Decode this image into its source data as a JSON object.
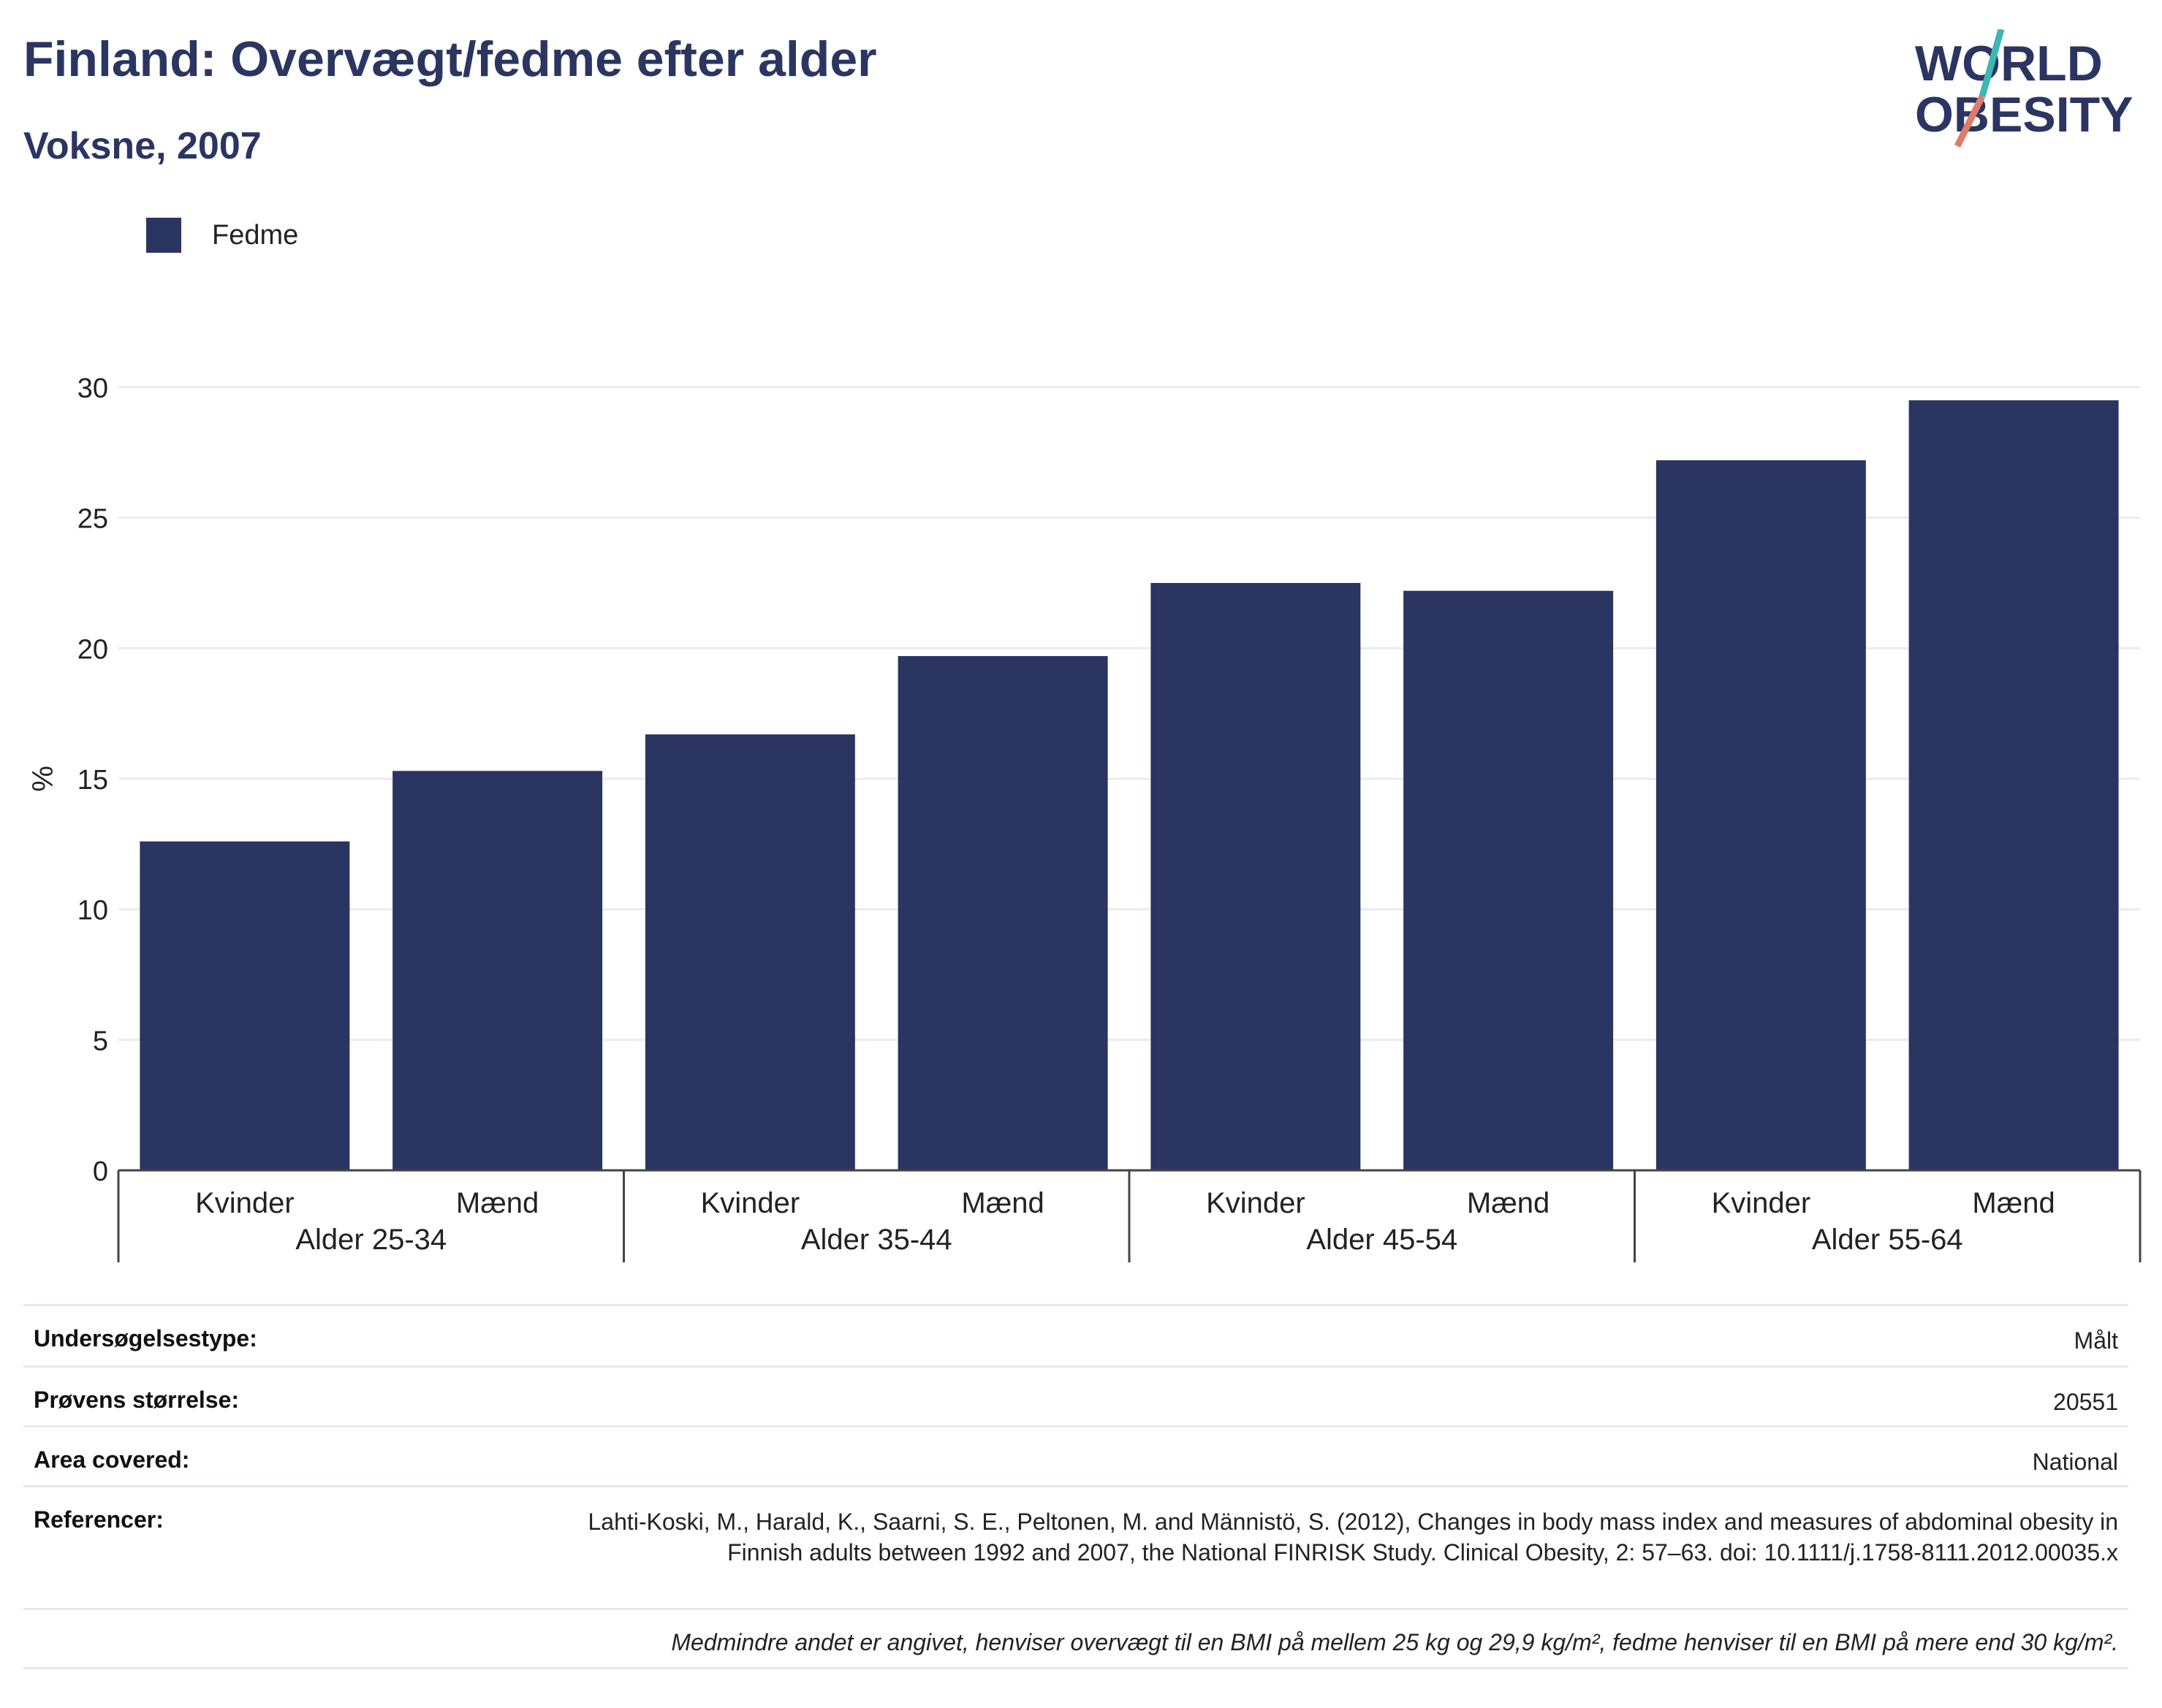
{
  "header": {
    "title": "Finland: Overvægt/fedme efter alder",
    "subtitle": "Voksne, 2007"
  },
  "logo": {
    "line1": "WORLD",
    "line2": "OBESITY"
  },
  "legend": {
    "label": "Fedme",
    "color": "#2b3561"
  },
  "chart_data": {
    "type": "bar",
    "ylabel": "%",
    "ylim": [
      0,
      30
    ],
    "yticks": [
      0,
      5,
      10,
      15,
      20,
      25,
      30
    ],
    "grid": true,
    "legend_position": "top-left",
    "groups": [
      "Alder 25-34",
      "Alder 35-44",
      "Alder 45-54",
      "Alder 55-64"
    ],
    "categories": [
      "Kvinder",
      "Mænd",
      "Kvinder",
      "Mænd",
      "Kvinder",
      "Mænd",
      "Kvinder",
      "Mænd"
    ],
    "series": [
      {
        "name": "Fedme",
        "color": "#2b3561",
        "values": [
          12.6,
          15.3,
          16.7,
          19.7,
          22.5,
          22.2,
          27.2,
          29.5
        ]
      }
    ]
  },
  "info": {
    "rows": [
      {
        "key": "Undersøgelsestype:",
        "value": "Målt"
      },
      {
        "key": "Prøvens størrelse:",
        "value": "20551"
      },
      {
        "key": "Area covered:",
        "value": "National"
      },
      {
        "key": "Referencer:",
        "value": "Lahti-Koski, M., Harald, K., Saarni, S. E., Peltonen, M. and Männistö, S. (2012), Changes in body mass index and measures of abdominal obesity in Finnish adults between 1992 and 2007, the National FINRISK Study. Clinical Obesity, 2: 57–63. doi: 10.1111/j.1758-8111.2012.00035.x"
      }
    ],
    "note": "Medmindre andet er angivet, henviser overvægt til en BMI på mellem 25 kg og 29,9 kg/m², fedme henviser til en BMI på mere end 30 kg/m²."
  }
}
